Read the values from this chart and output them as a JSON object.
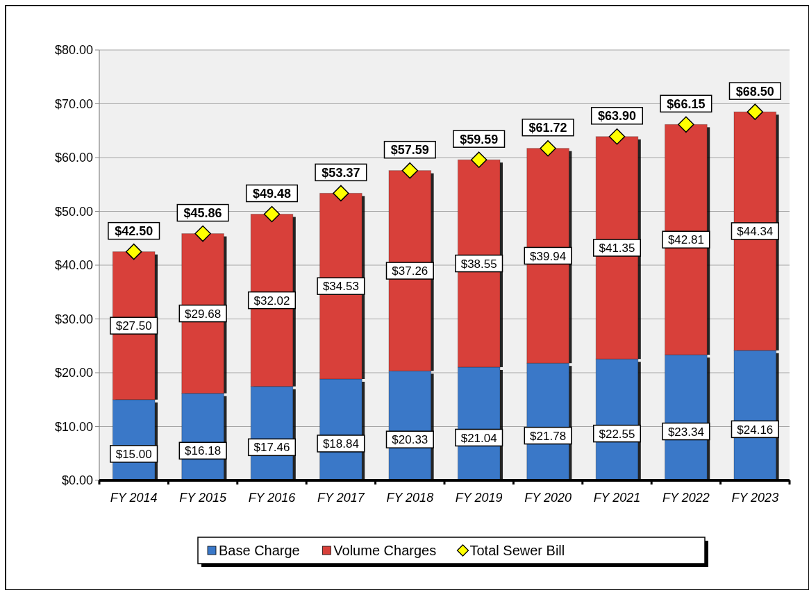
{
  "chart_data": {
    "type": "bar",
    "stacked": true,
    "categories": [
      "FY 2014",
      "FY 2015",
      "FY 2016",
      "FY 2017",
      "FY 2018",
      "FY 2019",
      "FY 2020",
      "FY 2021",
      "FY 2022",
      "FY 2023"
    ],
    "series": [
      {
        "name": "Base Charge",
        "color": "#3a78c8",
        "values": [
          15.0,
          16.18,
          17.46,
          18.84,
          20.33,
          21.04,
          21.78,
          22.55,
          23.34,
          24.16
        ],
        "value_labels": [
          "$15.00",
          "$16.18",
          "$17.46",
          "$18.84",
          "$20.33",
          "$21.04",
          "$21.78",
          "$22.55",
          "$23.34",
          "$24.16"
        ]
      },
      {
        "name": "Volume Charges",
        "color": "#d8403a",
        "values": [
          27.5,
          29.68,
          32.02,
          34.53,
          37.26,
          38.55,
          39.94,
          41.35,
          42.81,
          44.34
        ],
        "value_labels": [
          "$27.50",
          "$29.68",
          "$32.02",
          "$34.53",
          "$37.26",
          "$38.55",
          "$39.94",
          "$41.35",
          "$42.81",
          "$44.34"
        ]
      },
      {
        "name": "Total Sewer Bill",
        "type": "scatter",
        "marker": "diamond",
        "color": "#ffff00",
        "x": [
          "FY 2014",
          "FY 2015",
          "FY 2016",
          "FY 2017",
          "FY 2018",
          "FY 2019",
          "FY 2020",
          "FY 2021",
          "FY 2022",
          "FY 2023"
        ],
        "values": [
          42.5,
          45.86,
          49.48,
          53.37,
          57.59,
          59.59,
          61.72,
          63.9,
          66.15,
          68.5
        ],
        "value_labels": [
          "$42.50",
          "$45.86",
          "$49.48",
          "$53.37",
          "$57.59",
          "$59.59",
          "$61.72",
          "$63.90",
          "$66.15",
          "$68.50"
        ]
      }
    ],
    "ylim": [
      0,
      80
    ],
    "yticks": [
      {
        "value": 0,
        "label": "$0.00"
      },
      {
        "value": 10,
        "label": "$10.00"
      },
      {
        "value": 20,
        "label": "$20.00"
      },
      {
        "value": 30,
        "label": "$30.00"
      },
      {
        "value": 40,
        "label": "$40.00"
      },
      {
        "value": 50,
        "label": "$50.00"
      },
      {
        "value": 60,
        "label": "$60.00"
      },
      {
        "value": 70,
        "label": "$70.00"
      },
      {
        "value": 80,
        "label": "$80.00"
      }
    ],
    "grid": "y",
    "legend": "bottom"
  }
}
